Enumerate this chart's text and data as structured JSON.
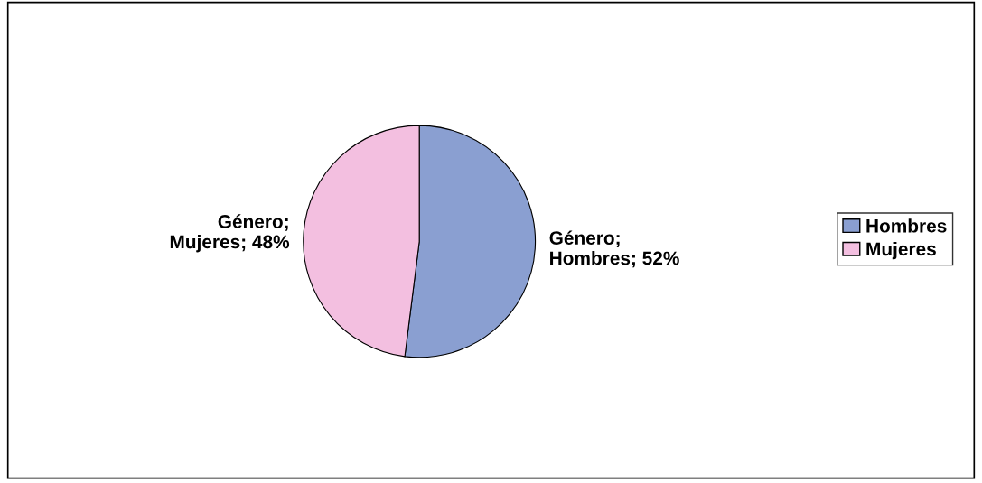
{
  "chart_data": {
    "type": "pie",
    "categories": [
      "Hombres",
      "Mujeres"
    ],
    "values": [
      52,
      48
    ],
    "colors": [
      "#8a9fd1",
      "#f3bfe0"
    ],
    "value_labels": [
      "Género;\nHombres; 52%",
      "Género;\nMujeres; 48%"
    ],
    "legend": "right"
  }
}
